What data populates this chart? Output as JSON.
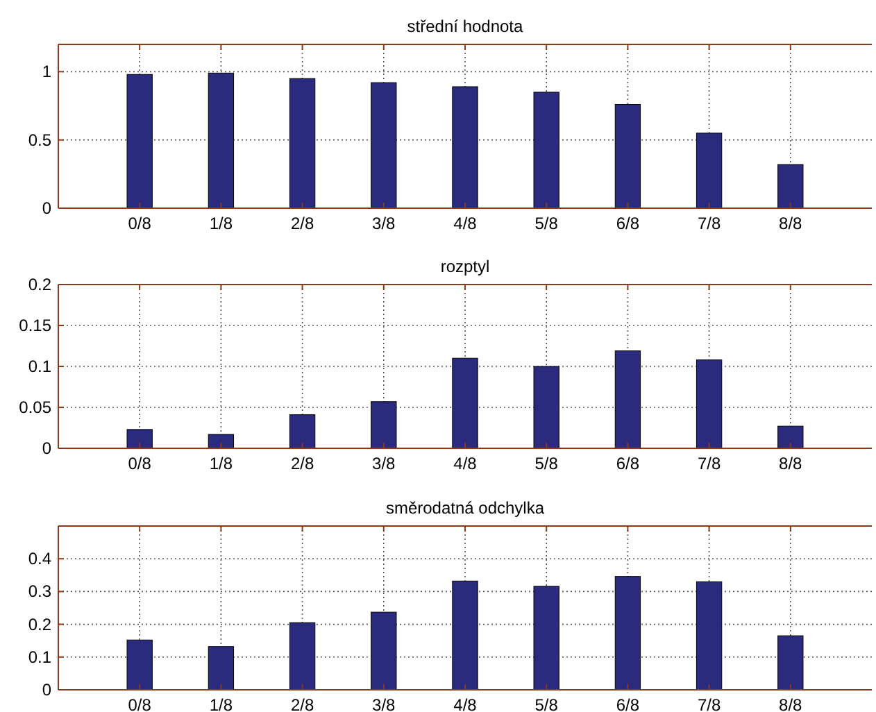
{
  "chart_data": [
    {
      "type": "bar",
      "title": "střední hodnota",
      "categories": [
        "0/8",
        "1/8",
        "2/8",
        "3/8",
        "4/8",
        "5/8",
        "6/8",
        "7/8",
        "8/8"
      ],
      "values": [
        0.98,
        0.99,
        0.95,
        0.92,
        0.89,
        0.85,
        0.76,
        0.55,
        0.32
      ],
      "color": "#2a2a7e",
      "ylim": [
        0,
        1.2
      ],
      "yticks": [
        0,
        0.5,
        1
      ],
      "grid": true
    },
    {
      "type": "bar",
      "title": "rozptyl",
      "categories": [
        "0/8",
        "1/8",
        "2/8",
        "3/8",
        "4/8",
        "5/8",
        "6/8",
        "7/8",
        "8/8"
      ],
      "values": [
        0.023,
        0.017,
        0.041,
        0.057,
        0.11,
        0.1,
        0.119,
        0.108,
        0.027
      ],
      "color": "#2a2a7e",
      "ylim": [
        0,
        0.2
      ],
      "yticks": [
        0,
        0.05,
        0.1,
        0.15,
        0.2
      ],
      "grid": true
    },
    {
      "type": "bar",
      "title": "směrodatná odchylka",
      "categories": [
        "0/8",
        "1/8",
        "2/8",
        "3/8",
        "4/8",
        "5/8",
        "6/8",
        "7/8",
        "8/8"
      ],
      "values": [
        0.152,
        0.132,
        0.205,
        0.237,
        0.332,
        0.316,
        0.346,
        0.33,
        0.165
      ],
      "color": "#2a2a7e",
      "ylim": [
        0,
        0.5
      ],
      "yticks": [
        0,
        0.1,
        0.2,
        0.3,
        0.4
      ],
      "grid": true
    }
  ]
}
